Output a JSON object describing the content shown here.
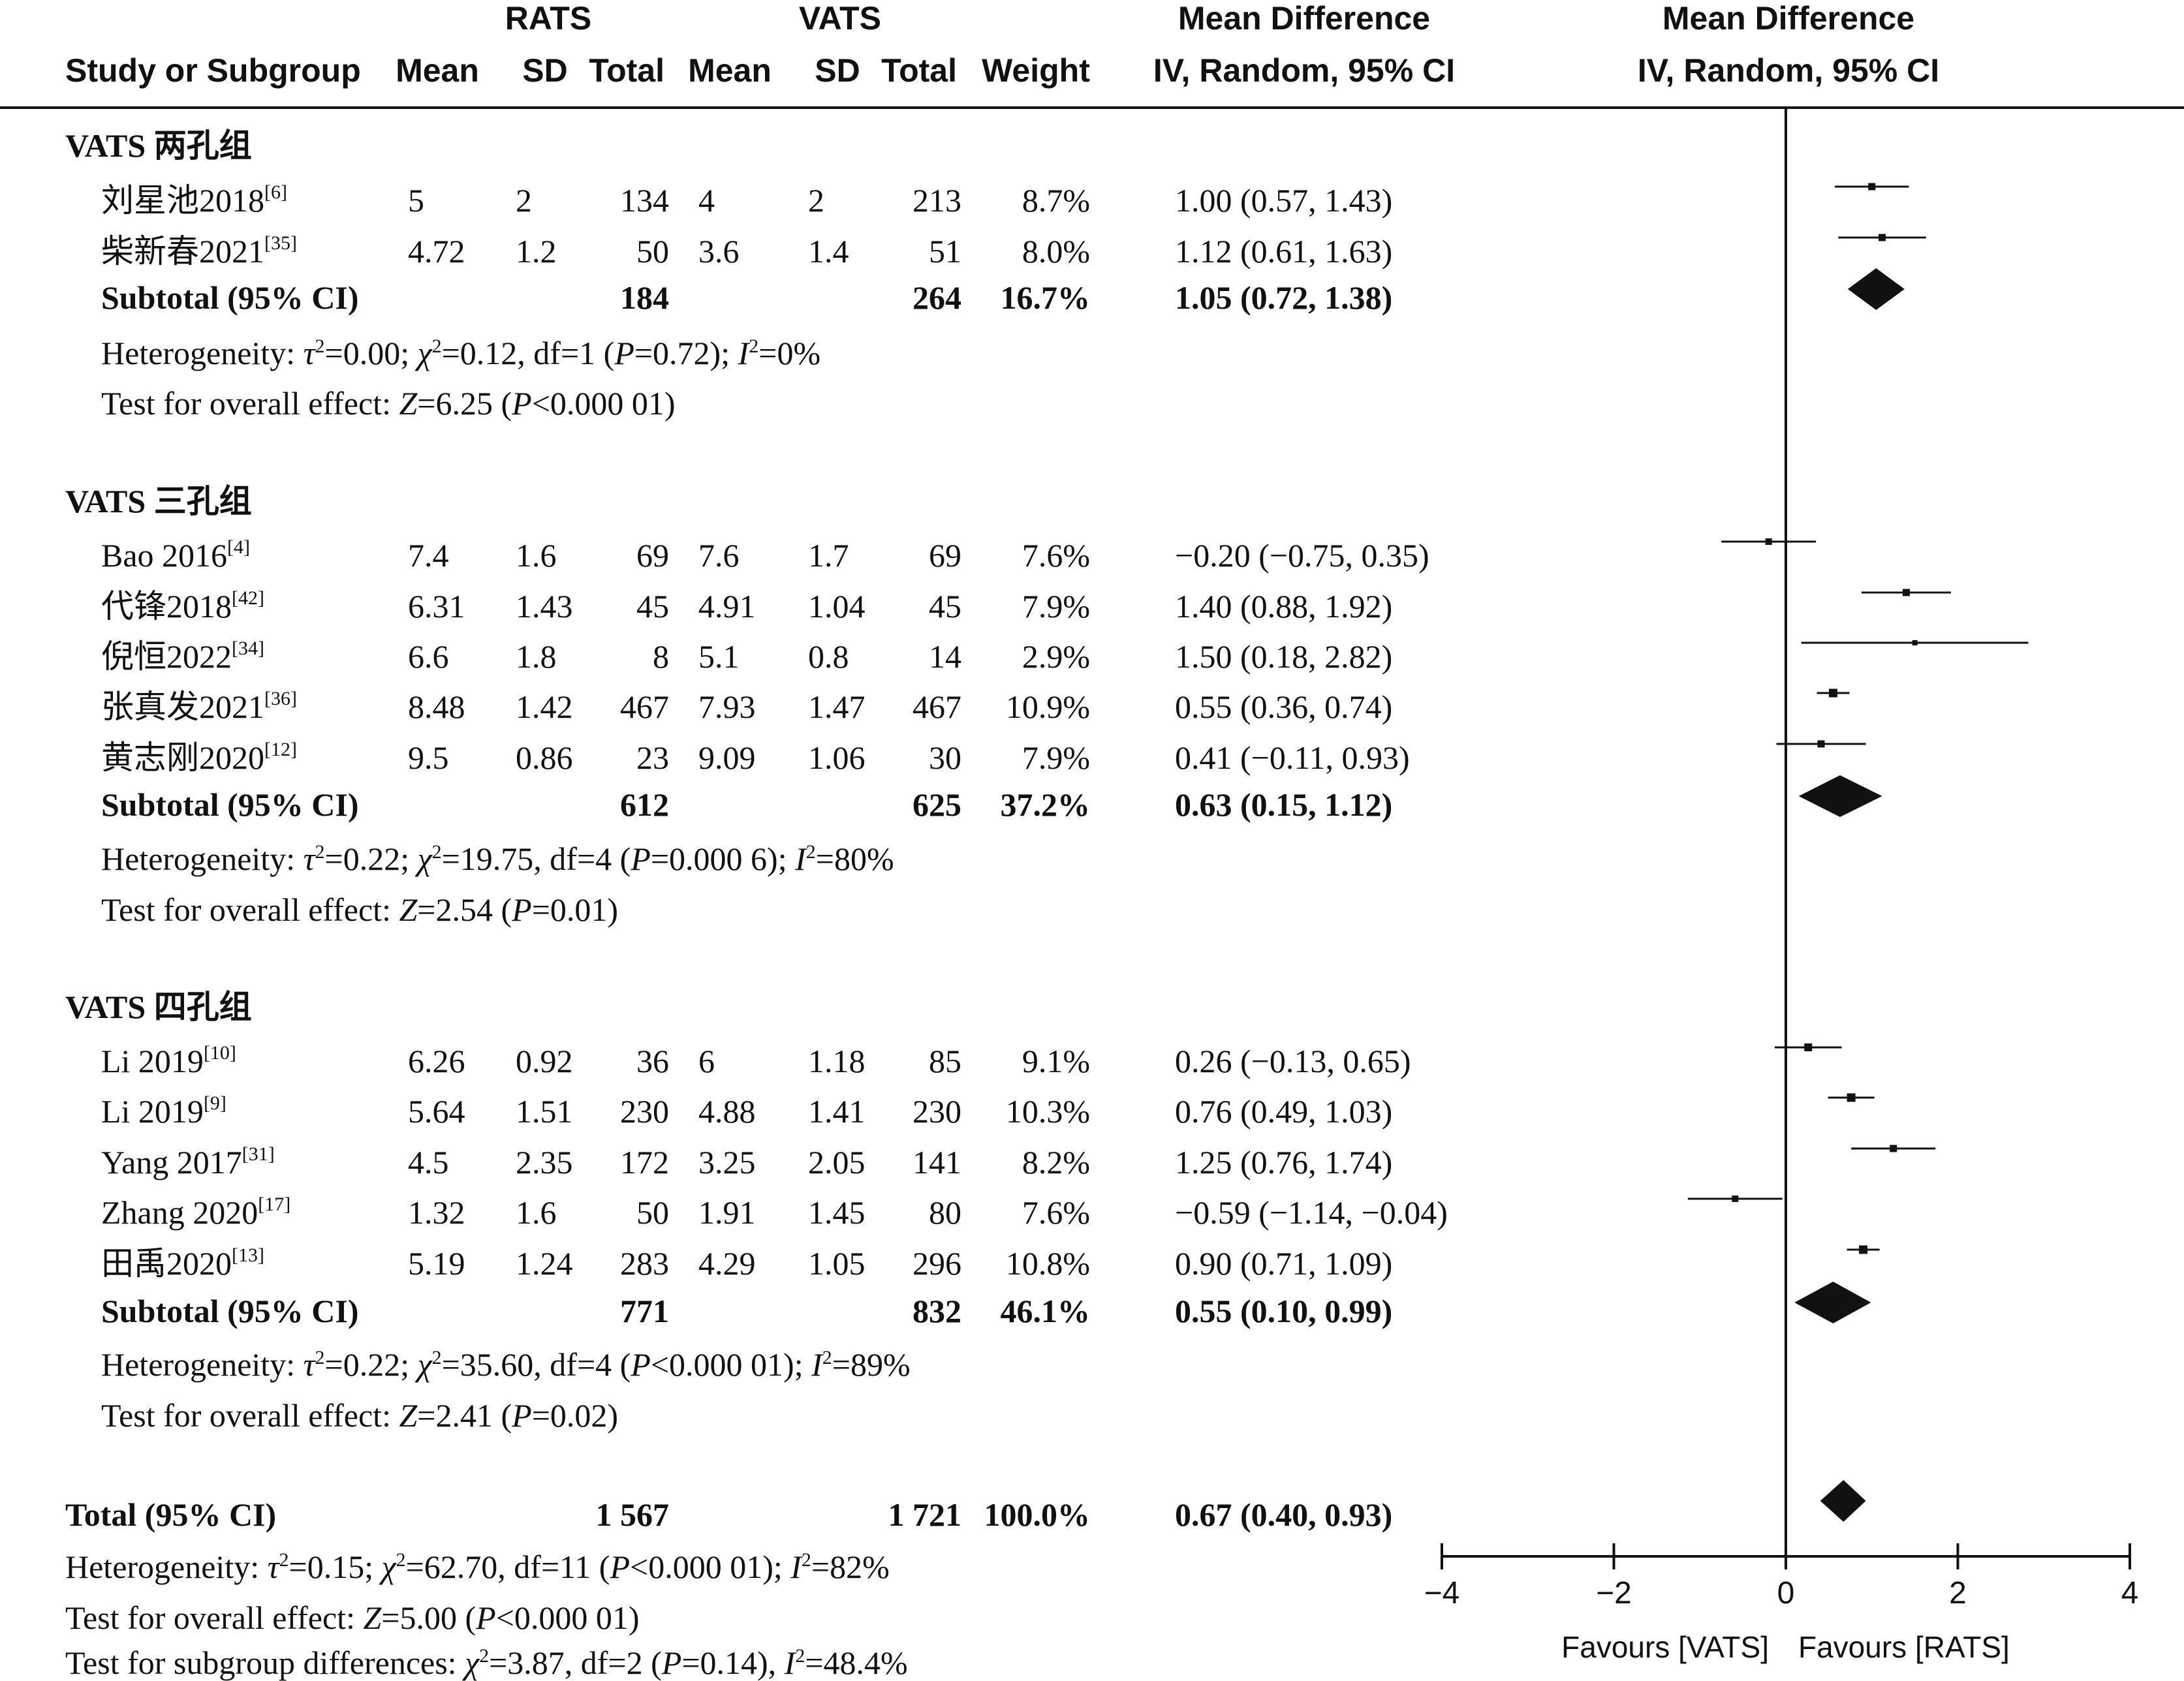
{
  "headers": {
    "group1": "RATS",
    "group2": "VATS",
    "md_title": "Mean Difference",
    "md_sub": "IV, Random, 95% CI",
    "plot_title": "Mean Difference",
    "plot_sub": "IV, Random, 95% CI",
    "study": "Study or Subgroup",
    "mean1": "Mean",
    "sd1": "SD",
    "total1": "Total",
    "mean2": "Mean",
    "sd2": "SD",
    "total2": "Total",
    "weight": "Weight"
  },
  "chart_data": {
    "type": "forest",
    "xlim": [
      -4,
      4
    ],
    "xticks": [
      "−4",
      "−2",
      "0",
      "2",
      "4"
    ],
    "xtick_values": [
      -4,
      -2,
      0,
      2,
      4
    ],
    "favours_left": "Favours [VATS]",
    "favours_right": "Favours [RATS]",
    "subgroups": [
      {
        "title": "VATS 两孔组",
        "studies": [
          {
            "name": "刘星池2018",
            "ref": "[6]",
            "m1": "5",
            "sd1": "2",
            "n1": "134",
            "m2": "4",
            "sd2": "2",
            "n2": "213",
            "weight": "8.7%",
            "ci_text": "1.00 (0.57, 1.43)",
            "md": 1.0,
            "lo": 0.57,
            "hi": 1.43
          },
          {
            "name": "柴新春2021",
            "ref": "[35]",
            "m1": "4.72",
            "sd1": "1.2",
            "n1": "50",
            "m2": "3.6",
            "sd2": "1.4",
            "n2": "51",
            "weight": "8.0%",
            "ci_text": "1.12 (0.61, 1.63)",
            "md": 1.12,
            "lo": 0.61,
            "hi": 1.63
          }
        ],
        "subtotal": {
          "label": "Subtotal (95% CI)",
          "n1": "184",
          "n2": "264",
          "weight": "16.7%",
          "ci_text": "1.05 (0.72, 1.38)",
          "md": 1.05,
          "lo": 0.72,
          "hi": 1.38
        },
        "het_prefix": "Heterogeneity: ",
        "het_tau": "τ",
        "het_a": "=0.00; ",
        "het_chi": "χ",
        "het_b": "=0.12, df=1 (",
        "het_p": "P",
        "het_c": "=0.72); ",
        "het_i": "I",
        "het_d": "=0%",
        "eff_prefix": "Test for overall effect: ",
        "eff_z": "Z",
        "eff_a": "=6.25 (",
        "eff_p": "P",
        "eff_b": "<0.000 01)"
      },
      {
        "title": "VATS 三孔组",
        "studies": [
          {
            "name": "Bao 2016",
            "ref": "[4]",
            "m1": "7.4",
            "sd1": "1.6",
            "n1": "69",
            "m2": "7.6",
            "sd2": "1.7",
            "n2": "69",
            "weight": "7.6%",
            "ci_text": "−0.20 (−0.75, 0.35)",
            "md": -0.2,
            "lo": -0.75,
            "hi": 0.35
          },
          {
            "name": "代锋2018",
            "ref": "[42]",
            "m1": "6.31",
            "sd1": "1.43",
            "n1": "45",
            "m2": "4.91",
            "sd2": "1.04",
            "n2": "45",
            "weight": "7.9%",
            "ci_text": "1.40 (0.88, 1.92)",
            "md": 1.4,
            "lo": 0.88,
            "hi": 1.92
          },
          {
            "name": "倪恒2022",
            "ref": "[34]",
            "m1": "6.6",
            "sd1": "1.8",
            "n1": "8",
            "m2": "5.1",
            "sd2": "0.8",
            "n2": "14",
            "weight": "2.9%",
            "ci_text": "1.50 (0.18, 2.82)",
            "md": 1.5,
            "lo": 0.18,
            "hi": 2.82
          },
          {
            "name": "张真发2021",
            "ref": "[36]",
            "m1": "8.48",
            "sd1": "1.42",
            "n1": "467",
            "m2": "7.93",
            "sd2": "1.47",
            "n2": "467",
            "weight": "10.9%",
            "ci_text": "0.55 (0.36, 0.74)",
            "md": 0.55,
            "lo": 0.36,
            "hi": 0.74
          },
          {
            "name": "黄志刚2020",
            "ref": "[12]",
            "m1": "9.5",
            "sd1": "0.86",
            "n1": "23",
            "m2": "9.09",
            "sd2": "1.06",
            "n2": "30",
            "weight": "7.9%",
            "ci_text": "0.41 (−0.11, 0.93)",
            "md": 0.41,
            "lo": -0.11,
            "hi": 0.93
          }
        ],
        "subtotal": {
          "label": "Subtotal (95% CI)",
          "n1": "612",
          "n2": "625",
          "weight": "37.2%",
          "ci_text": "0.63 (0.15, 1.12)",
          "md": 0.63,
          "lo": 0.15,
          "hi": 1.12
        },
        "het_prefix": "Heterogeneity: ",
        "het_tau": "τ",
        "het_a": "=0.22; ",
        "het_chi": "χ",
        "het_b": "=19.75, df=4 (",
        "het_p": "P",
        "het_c": "=0.000 6); ",
        "het_i": "I",
        "het_d": "=80%",
        "eff_prefix": "Test for overall effect: ",
        "eff_z": "Z",
        "eff_a": "=2.54 (",
        "eff_p": "P",
        "eff_b": "=0.01)"
      },
      {
        "title": "VATS 四孔组",
        "studies": [
          {
            "name": "Li 2019",
            "ref": "[10]",
            "m1": "6.26",
            "sd1": "0.92",
            "n1": "36",
            "m2": "6",
            "sd2": "1.18",
            "n2": "85",
            "weight": "9.1%",
            "ci_text": "0.26 (−0.13, 0.65)",
            "md": 0.26,
            "lo": -0.13,
            "hi": 0.65
          },
          {
            "name": "Li 2019",
            "ref": "[9]",
            "m1": "5.64",
            "sd1": "1.51",
            "n1": "230",
            "m2": "4.88",
            "sd2": "1.41",
            "n2": "230",
            "weight": "10.3%",
            "ci_text": "0.76 (0.49, 1.03)",
            "md": 0.76,
            "lo": 0.49,
            "hi": 1.03
          },
          {
            "name": "Yang 2017",
            "ref": "[31]",
            "m1": "4.5",
            "sd1": "2.35",
            "n1": "172",
            "m2": "3.25",
            "sd2": "2.05",
            "n2": "141",
            "weight": "8.2%",
            "ci_text": "1.25 (0.76, 1.74)",
            "md": 1.25,
            "lo": 0.76,
            "hi": 1.74
          },
          {
            "name": "Zhang 2020",
            "ref": "[17]",
            "m1": "1.32",
            "sd1": "1.6",
            "n1": "50",
            "m2": "1.91",
            "sd2": "1.45",
            "n2": "80",
            "weight": "7.6%",
            "ci_text": "−0.59 (−1.14, −0.04)",
            "md": -0.59,
            "lo": -1.14,
            "hi": -0.04
          },
          {
            "name": "田禹2020",
            "ref": "[13]",
            "m1": "5.19",
            "sd1": "1.24",
            "n1": "283",
            "m2": "4.29",
            "sd2": "1.05",
            "n2": "296",
            "weight": "10.8%",
            "ci_text": "0.90 (0.71, 1.09)",
            "md": 0.9,
            "lo": 0.71,
            "hi": 1.09
          }
        ],
        "subtotal": {
          "label": "Subtotal (95% CI)",
          "n1": "771",
          "n2": "832",
          "weight": "46.1%",
          "ci_text": "0.55 (0.10, 0.99)",
          "md": 0.55,
          "lo": 0.1,
          "hi": 0.99
        },
        "het_prefix": "Heterogeneity: ",
        "het_tau": "τ",
        "het_a": "=0.22; ",
        "het_chi": "χ",
        "het_b": "=35.60, df=4 (",
        "het_p": "P",
        "het_c": "<0.000 01); ",
        "het_i": "I",
        "het_d": "=89%",
        "eff_prefix": "Test for overall effect: ",
        "eff_z": "Z",
        "eff_a": "=2.41 (",
        "eff_p": "P",
        "eff_b": "=0.02)"
      }
    ],
    "total": {
      "label": "Total (95% CI)",
      "n1": "1 567",
      "n2": "1 721",
      "weight": "100.0%",
      "ci_text": "0.67 (0.40, 0.93)",
      "md": 0.67,
      "lo": 0.4,
      "hi": 0.93
    },
    "footer": {
      "het_prefix": "Heterogeneity: ",
      "het_tau": "τ",
      "het_a": "=0.15; ",
      "het_chi": "χ",
      "het_b": "=62.70, df=11 (",
      "het_p": "P",
      "het_c": "<0.000 01); ",
      "het_i": "I",
      "het_d": "=82%",
      "eff_prefix": "Test for overall effect: ",
      "eff_z": "Z",
      "eff_a": "=5.00 (",
      "eff_p": "P",
      "eff_b": "<0.000 01)",
      "sub_prefix": "Test for subgroup differences: ",
      "sub_chi": "χ",
      "sub_a": "=3.87, df=2 (",
      "sub_p": "P",
      "sub_b": "=0.14), ",
      "sub_i": "I",
      "sub_c": "=48.4%"
    }
  }
}
